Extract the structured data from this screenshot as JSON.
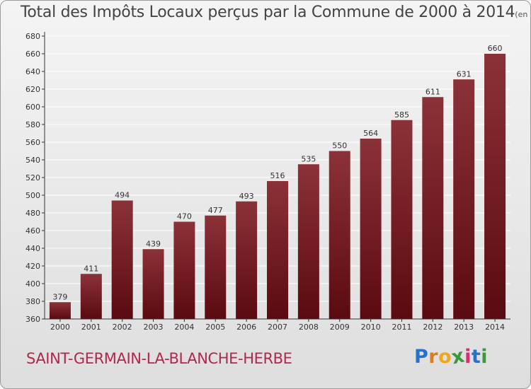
{
  "title": "Total des Impôts Locaux perçus par la Commune de 2000 à 2014",
  "title_unit": "(en milliers d'€)",
  "commune": "SAINT-GERMAIN-LA-BLANCHE-HERBE",
  "logo": {
    "text": "Proxiti",
    "letters": [
      "P",
      "r",
      "o",
      "x",
      "i",
      "t",
      "i"
    ],
    "colors": [
      "#2a6fc9",
      "#e07a1b",
      "#f0a81a",
      "#3a9a3a",
      "#d62f6e",
      "#2a6fc9",
      "#3a9a3a"
    ]
  },
  "colors": {
    "bar_top": "#8b3238",
    "bar_bottom": "#5a0a10",
    "axis": "#333333",
    "grid": "#ffffff"
  },
  "chart_data": {
    "type": "bar",
    "title": "Total des Impôts Locaux perçus par la Commune de 2000 à 2014",
    "xlabel": "",
    "ylabel": "",
    "categories": [
      "2000",
      "2001",
      "2002",
      "2003",
      "2004",
      "2005",
      "2006",
      "2007",
      "2008",
      "2009",
      "2010",
      "2011",
      "2012",
      "2013",
      "2014"
    ],
    "values": [
      379,
      411,
      494,
      439,
      470,
      477,
      493,
      516,
      535,
      550,
      564,
      585,
      611,
      631,
      660
    ],
    "ylim": [
      360,
      680
    ],
    "yticks": [
      360,
      380,
      400,
      420,
      440,
      460,
      480,
      500,
      520,
      540,
      560,
      580,
      600,
      620,
      640,
      660,
      680
    ],
    "grid": true,
    "legend": "none"
  }
}
